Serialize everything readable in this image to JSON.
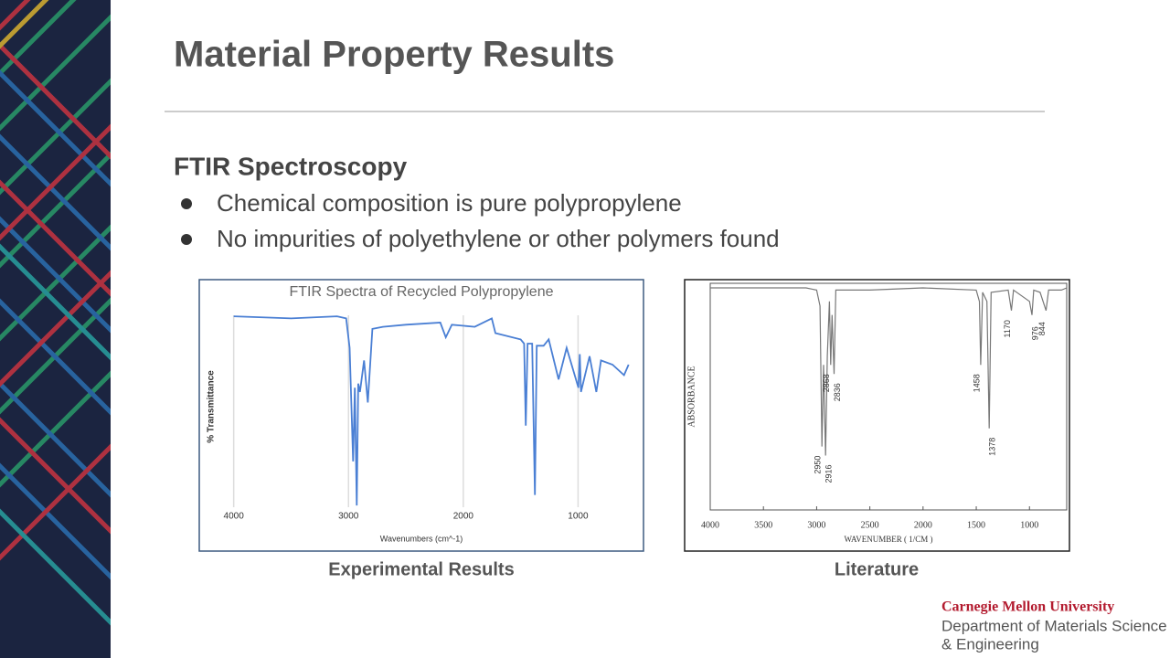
{
  "title": "Material Property Results",
  "section": {
    "heading": "FTIR Spectroscopy",
    "bullets": [
      "Chemical composition is pure polypropylene",
      "No impurities of polyethylene or other polymers found"
    ]
  },
  "figures": [
    {
      "caption": "Experimental Results",
      "chart_data": {
        "type": "line",
        "title": "FTIR Spectra of Recycled Polypropylene",
        "x_label": "Wavenumbers (cm^-1)",
        "y_label": "% Transmittance",
        "color": "#4a7fd4",
        "grid": true,
        "xlim": [
          4300,
          430
        ],
        "xticks": [
          4000,
          3000,
          2000,
          1000
        ],
        "ylim": [
          0,
          100
        ],
        "x": [
          4000,
          3500,
          3100,
          3020,
          2990,
          2960,
          2945,
          2928,
          2915,
          2900,
          2864,
          2832,
          2792,
          2700,
          2500,
          2200,
          2152,
          2100,
          1900,
          1752,
          1720,
          1500,
          1470,
          1456,
          1440,
          1400,
          1376,
          1360,
          1300,
          1256,
          1170,
          1100,
          997,
          985,
          975,
          900,
          841,
          800,
          700,
          600,
          560
        ],
        "values": [
          93,
          92,
          93,
          92,
          78,
          24,
          59,
          3,
          61,
          57,
          72,
          52,
          87,
          88,
          89,
          90,
          83,
          89,
          88,
          92,
          85,
          82,
          80,
          41,
          80,
          80,
          8,
          79,
          79,
          82,
          63,
          78,
          59,
          75,
          57,
          74,
          57,
          72,
          70,
          65,
          70
        ]
      }
    },
    {
      "caption": "Literature",
      "chart_data": {
        "type": "line",
        "x_label": "WAVENUMBER ( 1/CM )",
        "y_label": "ABSORBANCE",
        "color": "#777777",
        "xlim": [
          4000,
          650
        ],
        "xticks": [
          4000,
          3500,
          3000,
          2500,
          2000,
          1500,
          1000
        ],
        "ylim": [
          0,
          100
        ],
        "x": [
          4000,
          3100,
          3000,
          2968,
          2950,
          2935,
          2916,
          2900,
          2880,
          2868,
          2855,
          2836,
          2820,
          2500,
          2000,
          1500,
          1470,
          1458,
          1440,
          1400,
          1378,
          1360,
          1200,
          1170,
          1150,
          1000,
          976,
          960,
          900,
          844,
          820,
          700,
          650
        ],
        "values": [
          98,
          98,
          97,
          90,
          28,
          64,
          24,
          68,
          92,
          64,
          86,
          60,
          97,
          97,
          98,
          97,
          92,
          64,
          96,
          92,
          36,
          96,
          97,
          88,
          97,
          92,
          86,
          97,
          96,
          88,
          97,
          97,
          98
        ],
        "peak_labels": [
          2950,
          2916,
          2868,
          2836,
          1458,
          1378,
          1170,
          976,
          844
        ]
      }
    }
  ],
  "footer": {
    "university": "Carnegie Mellon University",
    "department": [
      "Department of Materials Science",
      "& Engineering"
    ]
  }
}
